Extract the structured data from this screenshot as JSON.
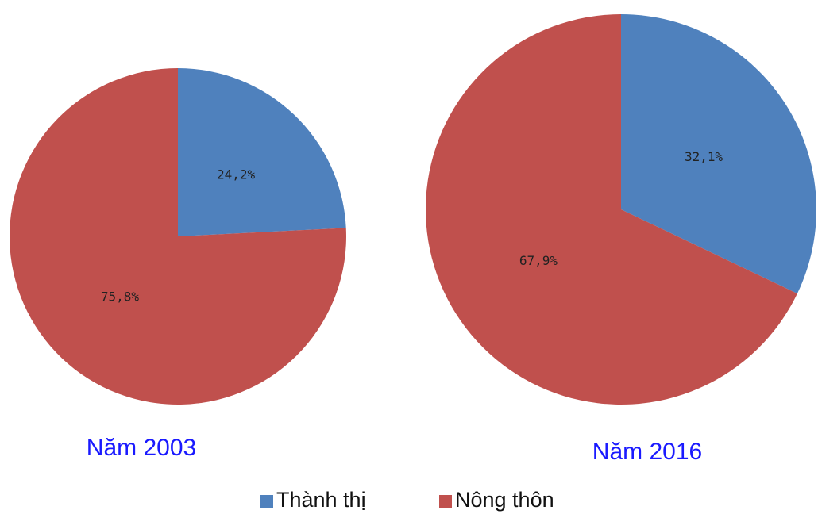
{
  "chart_data": [
    {
      "type": "pie",
      "title": "Năm 2003",
      "categories": [
        "Thành thị",
        "Nông thôn"
      ],
      "values": [
        24.2,
        75.8
      ],
      "value_labels": [
        "24,2%",
        "75,8%"
      ],
      "colors": [
        "#4f81bd",
        "#c0504d"
      ]
    },
    {
      "type": "pie",
      "title": "Năm 2016",
      "categories": [
        "Thành thị",
        "Nông thôn"
      ],
      "values": [
        32.1,
        67.9
      ],
      "value_labels": [
        "32,1%",
        "67,9%"
      ],
      "colors": [
        "#4f81bd",
        "#c0504d"
      ]
    }
  ]
}
